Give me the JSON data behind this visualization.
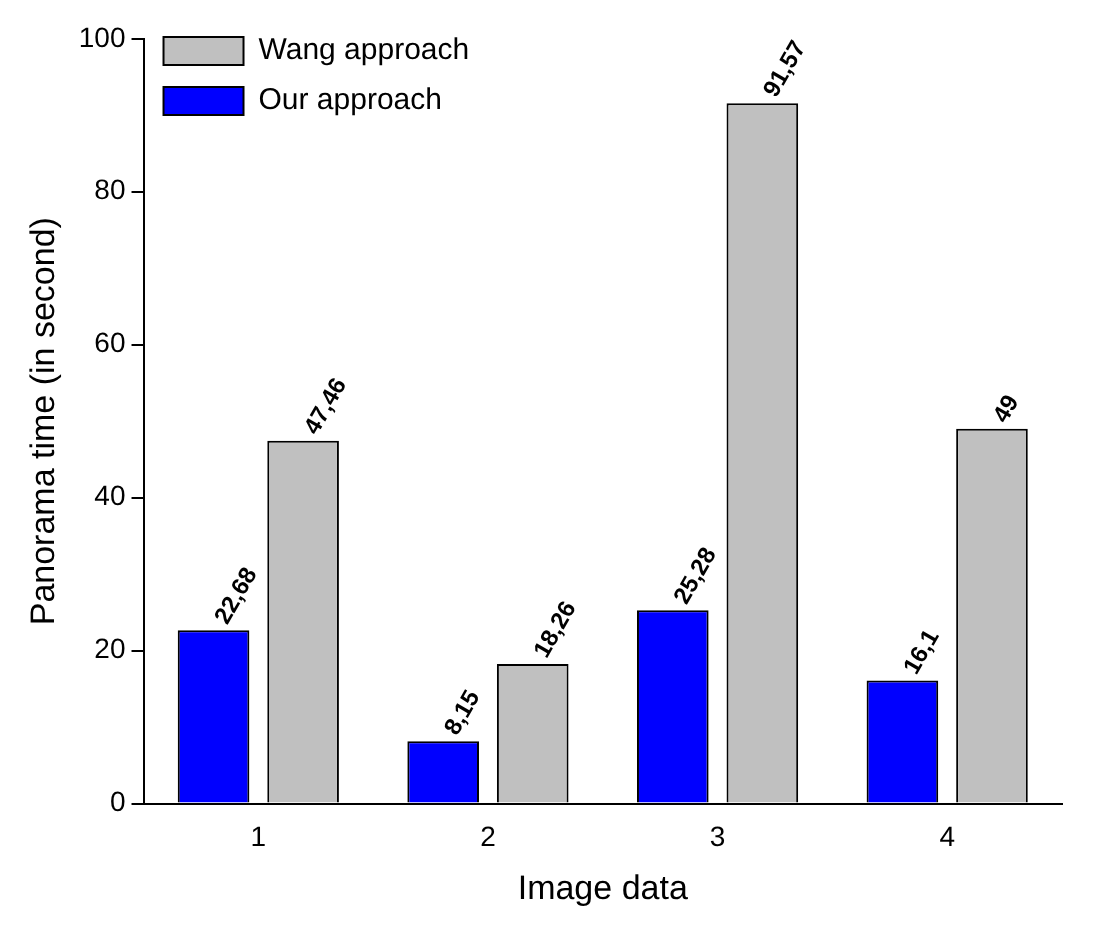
{
  "chart_data": {
    "type": "bar",
    "xlabel": "Image data",
    "ylabel": "Panorama time (in second)",
    "categories": [
      "1",
      "2",
      "3",
      "4"
    ],
    "series": [
      {
        "name": "Our approach",
        "color": "#0000ff",
        "values": [
          22.68,
          8.15,
          25.28,
          16.1
        ],
        "value_labels": [
          "22,68",
          "8,15",
          "25,28",
          "16,1"
        ]
      },
      {
        "name": "Wang approach",
        "color": "#c0c0c0",
        "values": [
          47.46,
          18.26,
          91.57,
          49
        ],
        "value_labels": [
          "47,46",
          "18,26",
          "91,57",
          "49"
        ]
      }
    ],
    "ylim": [
      0,
      100
    ],
    "yticks": [
      0,
      20,
      40,
      60,
      80,
      100
    ],
    "grid": false,
    "legend": "top left"
  }
}
